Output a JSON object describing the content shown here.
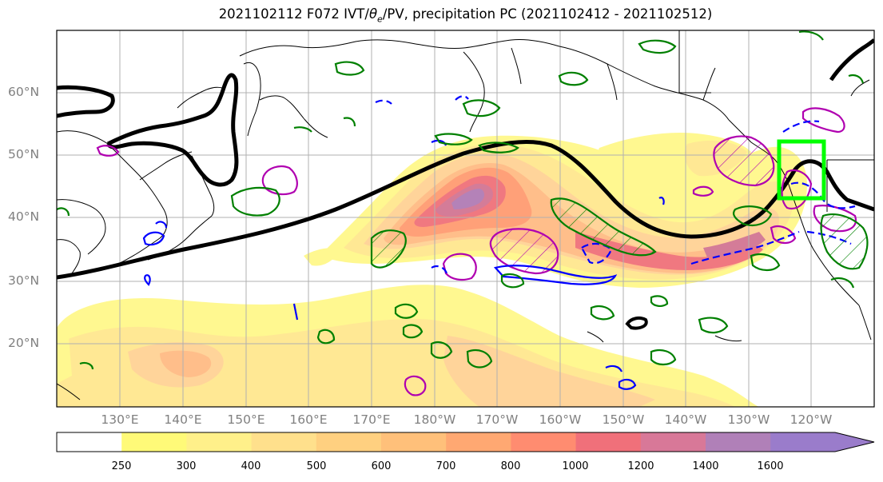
{
  "title_main": "2021102112 F072 IVT/",
  "title_theta": "θ",
  "title_sub": "e",
  "title_rest": "/PV, precipitation PC (2021102412 - 2021102512)",
  "lat_labels": [
    "60°N",
    "50°N",
    "40°N",
    "30°N",
    "20°N"
  ],
  "lon_labels": [
    "130°E",
    "140°E",
    "150°E",
    "160°E",
    "170°E",
    "180°W",
    "170°W",
    "160°W",
    "150°W",
    "140°W",
    "130°W",
    "120°W"
  ],
  "colorbar": {
    "levels": [
      "250",
      "300",
      "400",
      "500",
      "600",
      "700",
      "800",
      "1000",
      "1200",
      "1400",
      "1600"
    ],
    "colors": [
      "#ffffff",
      "#fffa78",
      "#fff08a",
      "#ffe08c",
      "#ffd080",
      "#ffc07a",
      "#ffa872",
      "#ff8c70",
      "#f0707a",
      "#d87898",
      "#b080b8",
      "#9a7ccb"
    ]
  },
  "colors": {
    "pv_contour": "#000000",
    "theta_e": "#008000",
    "precip_pos": "#b000b0",
    "precip_neg": "#0000ff",
    "box": "#00ff00",
    "grid": "#b0b0b0"
  }
}
